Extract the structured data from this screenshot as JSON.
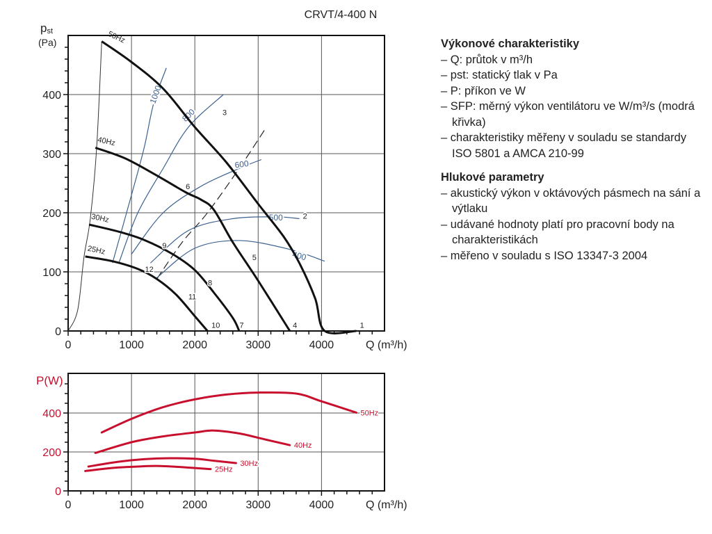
{
  "title": "CRVT/4-400 N",
  "chart_data": [
    {
      "type": "line",
      "name": "pressure-characteristics",
      "xlabel": "Q (m³/h)",
      "ylabel": "p_st (Pa)",
      "ylabel_main": "p",
      "ylabel_sub": "st",
      "ylabel_unit": "(Pa)",
      "xlim": [
        0,
        5000
      ],
      "ylim": [
        0,
        500
      ],
      "xticks": [
        0,
        1000,
        2000,
        3000,
        4000
      ],
      "yticks": [
        0,
        100,
        200,
        300,
        400
      ],
      "grid": true,
      "series": [
        {
          "name": "50Hz",
          "color": "#111111",
          "points": [
            [
              530,
              490
            ],
            [
              1000,
              455
            ],
            [
              1500,
              410
            ],
            [
              2000,
              345
            ],
            [
              2500,
              285
            ],
            [
              3000,
              215
            ],
            [
              3400,
              160
            ],
            [
              3650,
              115
            ],
            [
              3900,
              55
            ],
            [
              4050,
              0
            ],
            [
              4550,
              0
            ]
          ]
        },
        {
          "name": "40Hz",
          "color": "#111111",
          "points": [
            [
              430,
              310
            ],
            [
              900,
              292
            ],
            [
              1400,
              263
            ],
            [
              1850,
              235
            ],
            [
              2100,
              222
            ],
            [
              2300,
              205
            ],
            [
              2600,
              150
            ],
            [
              3000,
              85
            ],
            [
              3500,
              0
            ]
          ]
        },
        {
          "name": "30Hz",
          "color": "#111111",
          "points": [
            [
              330,
              180
            ],
            [
              800,
              168
            ],
            [
              1200,
              154
            ],
            [
              1650,
              130
            ],
            [
              2000,
              103
            ],
            [
              2300,
              65
            ],
            [
              2600,
              22
            ],
            [
              2700,
              0
            ]
          ]
        },
        {
          "name": "25Hz",
          "color": "#111111",
          "points": [
            [
              270,
              126
            ],
            [
              700,
              118
            ],
            [
              1100,
              105
            ],
            [
              1400,
              88
            ],
            [
              1700,
              62
            ],
            [
              2000,
              25
            ],
            [
              2200,
              0
            ]
          ]
        }
      ],
      "system_curve_thin": [
        [
          0,
          0
        ],
        [
          150,
          35
        ],
        [
          250,
          125
        ],
        [
          350,
          190
        ],
        [
          450,
          310
        ],
        [
          530,
          490
        ]
      ],
      "system_curve_dashed": [
        [
          1400,
          88
        ],
        [
          1800,
          150
        ],
        [
          2200,
          200
        ],
        [
          2700,
          275
        ],
        [
          3100,
          340
        ]
      ],
      "sfp_curves": [
        {
          "label": "1000",
          "color": "#3a5f8f",
          "points": [
            [
              700,
              115
            ],
            [
              1000,
              230
            ],
            [
              1200,
              310
            ],
            [
              1350,
              385
            ],
            [
              1550,
              445
            ]
          ]
        },
        {
          "label": "800",
          "color": "#3a5f8f",
          "points": [
            [
              800,
              115
            ],
            [
              1100,
              200
            ],
            [
              1500,
              275
            ],
            [
              1900,
              345
            ],
            [
              2450,
              400
            ]
          ]
        },
        {
          "label": "600",
          "color": "#3a5f8f",
          "points": [
            [
              1000,
              130
            ],
            [
              1500,
              200
            ],
            [
              2100,
              245
            ],
            [
              2700,
              275
            ],
            [
              3050,
              290
            ]
          ]
        },
        {
          "label": "500",
          "color": "#3a5f8f",
          "points": [
            [
              1300,
              115
            ],
            [
              1900,
              170
            ],
            [
              2600,
              190
            ],
            [
              3300,
              193
            ],
            [
              3650,
              190
            ]
          ]
        },
        {
          "label": "400",
          "color": "#3a5f8f",
          "points": [
            [
              1400,
              90
            ],
            [
              2000,
              140
            ],
            [
              2700,
              153
            ],
            [
              3500,
              138
            ],
            [
              4050,
              118
            ]
          ]
        }
      ],
      "point_labels": [
        {
          "label": "1",
          "x": 4640,
          "y": 10
        },
        {
          "label": "2",
          "x": 3740,
          "y": 195
        },
        {
          "label": "3",
          "x": 2470,
          "y": 370
        },
        {
          "label": "4",
          "x": 3580,
          "y": 10
        },
        {
          "label": "5",
          "x": 2940,
          "y": 125
        },
        {
          "label": "6",
          "x": 1890,
          "y": 245
        },
        {
          "label": "7",
          "x": 2740,
          "y": 10
        },
        {
          "label": "8",
          "x": 2240,
          "y": 82
        },
        {
          "label": "9",
          "x": 1520,
          "y": 145
        },
        {
          "label": "10",
          "x": 2330,
          "y": 10
        },
        {
          "label": "11",
          "x": 1960,
          "y": 58
        },
        {
          "label": "12",
          "x": 1280,
          "y": 105
        }
      ],
      "freq_labels": [
        {
          "label": "50Hz",
          "x": 620,
          "y": 500
        },
        {
          "label": "40Hz",
          "x": 460,
          "y": 320
        },
        {
          "label": "30Hz",
          "x": 360,
          "y": 190
        },
        {
          "label": "25Hz",
          "x": 300,
          "y": 136
        }
      ]
    },
    {
      "type": "line",
      "name": "power-consumption",
      "xlabel": "Q (m³/h)",
      "ylabel": "P(W)",
      "xlim": [
        0,
        5000
      ],
      "ylim": [
        0,
        600
      ],
      "xticks": [
        0,
        1000,
        2000,
        3000,
        4000
      ],
      "yticks": [
        0,
        200,
        400
      ],
      "grid": true,
      "series": [
        {
          "name": "50Hz",
          "color": "#c8102e",
          "points": [
            [
              530,
              300
            ],
            [
              1000,
              370
            ],
            [
              1500,
              430
            ],
            [
              2000,
              470
            ],
            [
              2500,
              495
            ],
            [
              3000,
              505
            ],
            [
              3600,
              500
            ],
            [
              4000,
              460
            ],
            [
              4550,
              402
            ]
          ]
        },
        {
          "name": "40Hz",
          "color": "#c8102e",
          "points": [
            [
              430,
              195
            ],
            [
              1000,
              250
            ],
            [
              1500,
              280
            ],
            [
              2000,
              300
            ],
            [
              2300,
              310
            ],
            [
              2700,
              295
            ],
            [
              3100,
              265
            ],
            [
              3500,
              235
            ]
          ]
        },
        {
          "name": "30Hz",
          "color": "#c8102e",
          "points": [
            [
              320,
              125
            ],
            [
              800,
              150
            ],
            [
              1200,
              163
            ],
            [
              1600,
              168
            ],
            [
              2000,
              165
            ],
            [
              2300,
              155
            ],
            [
              2650,
              143
            ]
          ]
        },
        {
          "name": "25Hz",
          "color": "#c8102e",
          "points": [
            [
              270,
              102
            ],
            [
              700,
              118
            ],
            [
              1100,
              125
            ],
            [
              1400,
              128
            ],
            [
              1800,
              122
            ],
            [
              2250,
              112
            ]
          ]
        }
      ]
    }
  ],
  "sidebar": {
    "sections": [
      {
        "heading": "Výkonové charakteristiky",
        "items": [
          "Q: průtok v m³/h",
          "pst: statický tlak v Pa",
          "P: příkon ve W",
          "SFP: měrný výkon ventilátoru ve W/m³/s (modrá křivka)",
          "charakteristiky měřeny v souladu se standardy ISO 5801 a AMCA 210-99"
        ]
      },
      {
        "heading": "Hlukové parametry",
        "items": [
          "akustický výkon v oktávových pásmech na sání a výtlaku",
          "udávané hodnoty platí pro pracovní body na charakteristikách",
          "měřeno v souladu s ISO 13347-3 2004"
        ]
      }
    ]
  }
}
